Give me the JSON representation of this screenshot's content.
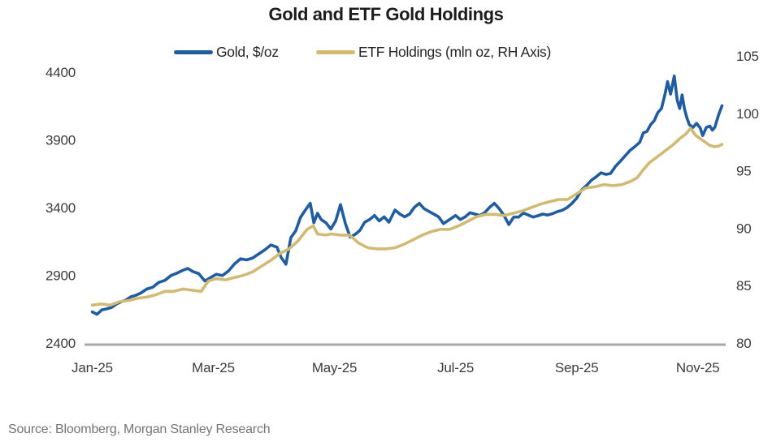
{
  "title": "Gold and ETF Gold Holdings",
  "source": "Source: Bloomberg, Morgan Stanley Research",
  "legend": [
    {
      "label": "Gold, $/oz",
      "color": "#1d5da7"
    },
    {
      "label": "ETF Holdings (mln oz, RH Axis)",
      "color": "#d2bb6e"
    }
  ],
  "colors": {
    "gold_line": "#1d5da7",
    "etf_line": "#d2bb6e",
    "axis_line": "#a8a8a8",
    "tick_text": "#3c3c3c",
    "title_text": "#1c1c1c",
    "source_text": "#757575",
    "background": "#ffffff"
  },
  "chart_data": {
    "type": "line",
    "title": "Gold and ETF Gold Holdings",
    "grid": false,
    "legend_position": "top",
    "axis_line_color": "#a8a8a8",
    "x_axis": {
      "unit": "months since Jan-2025",
      "min": -0.1,
      "max": 10.5,
      "tick_positions": [
        0,
        2,
        4,
        6,
        8,
        10
      ],
      "tick_labels": [
        "Jan-25",
        "Mar-25",
        "May-25",
        "Jul-25",
        "Sep-25",
        "Nov-25"
      ]
    },
    "left_axis": {
      "label": "Gold, $/oz",
      "min": 2400,
      "max": 4400,
      "ticks": [
        2400,
        2900,
        3400,
        3900,
        4400
      ]
    },
    "right_axis": {
      "label": "ETF Holdings (mln oz)",
      "min": 80,
      "max": 105,
      "ticks": [
        80,
        85,
        90,
        95,
        100,
        105
      ]
    },
    "series": [
      {
        "name": "Gold, $/oz",
        "data_name": "gold-line-series",
        "axis": "left",
        "color": "#1d5da7",
        "points": [
          [
            0,
            2630
          ],
          [
            0.08,
            2612
          ],
          [
            0.16,
            2645
          ],
          [
            0.24,
            2652
          ],
          [
            0.32,
            2662
          ],
          [
            0.4,
            2688
          ],
          [
            0.48,
            2705
          ],
          [
            0.56,
            2718
          ],
          [
            0.64,
            2742
          ],
          [
            0.72,
            2752
          ],
          [
            0.8,
            2768
          ],
          [
            0.9,
            2798
          ],
          [
            1.0,
            2812
          ],
          [
            1.1,
            2848
          ],
          [
            1.2,
            2862
          ],
          [
            1.3,
            2898
          ],
          [
            1.4,
            2916
          ],
          [
            1.5,
            2938
          ],
          [
            1.58,
            2950
          ],
          [
            1.66,
            2928
          ],
          [
            1.76,
            2912
          ],
          [
            1.86,
            2858
          ],
          [
            1.95,
            2882
          ],
          [
            2.05,
            2908
          ],
          [
            2.15,
            2898
          ],
          [
            2.25,
            2932
          ],
          [
            2.35,
            2984
          ],
          [
            2.45,
            3022
          ],
          [
            2.55,
            3014
          ],
          [
            2.65,
            3028
          ],
          [
            2.75,
            3058
          ],
          [
            2.85,
            3088
          ],
          [
            2.95,
            3124
          ],
          [
            3.05,
            3108
          ],
          [
            3.12,
            3032
          ],
          [
            3.2,
            2982
          ],
          [
            3.28,
            3178
          ],
          [
            3.36,
            3228
          ],
          [
            3.44,
            3328
          ],
          [
            3.52,
            3382
          ],
          [
            3.6,
            3432
          ],
          [
            3.66,
            3288
          ],
          [
            3.72,
            3358
          ],
          [
            3.78,
            3312
          ],
          [
            3.86,
            3288
          ],
          [
            3.94,
            3242
          ],
          [
            4.02,
            3302
          ],
          [
            4.1,
            3422
          ],
          [
            4.18,
            3282
          ],
          [
            4.26,
            3182
          ],
          [
            4.34,
            3202
          ],
          [
            4.42,
            3232
          ],
          [
            4.5,
            3292
          ],
          [
            4.58,
            3312
          ],
          [
            4.66,
            3342
          ],
          [
            4.74,
            3302
          ],
          [
            4.82,
            3332
          ],
          [
            4.9,
            3292
          ],
          [
            5.0,
            3382
          ],
          [
            5.08,
            3352
          ],
          [
            5.16,
            3332
          ],
          [
            5.24,
            3352
          ],
          [
            5.32,
            3402
          ],
          [
            5.4,
            3432
          ],
          [
            5.48,
            3392
          ],
          [
            5.56,
            3372
          ],
          [
            5.64,
            3352
          ],
          [
            5.72,
            3332
          ],
          [
            5.8,
            3282
          ],
          [
            5.9,
            3312
          ],
          [
            6.0,
            3342
          ],
          [
            6.08,
            3312
          ],
          [
            6.16,
            3332
          ],
          [
            6.24,
            3362
          ],
          [
            6.32,
            3352
          ],
          [
            6.4,
            3342
          ],
          [
            6.48,
            3362
          ],
          [
            6.56,
            3402
          ],
          [
            6.64,
            3432
          ],
          [
            6.72,
            3392
          ],
          [
            6.8,
            3342
          ],
          [
            6.88,
            3275
          ],
          [
            6.96,
            3330
          ],
          [
            7.04,
            3330
          ],
          [
            7.12,
            3360
          ],
          [
            7.2,
            3345
          ],
          [
            7.28,
            3330
          ],
          [
            7.36,
            3340
          ],
          [
            7.44,
            3352
          ],
          [
            7.52,
            3345
          ],
          [
            7.6,
            3355
          ],
          [
            7.68,
            3370
          ],
          [
            7.76,
            3380
          ],
          [
            7.84,
            3400
          ],
          [
            7.92,
            3430
          ],
          [
            8.0,
            3470
          ],
          [
            8.08,
            3530
          ],
          [
            8.16,
            3562
          ],
          [
            8.24,
            3602
          ],
          [
            8.32,
            3627
          ],
          [
            8.4,
            3657
          ],
          [
            8.48,
            3645
          ],
          [
            8.56,
            3652
          ],
          [
            8.64,
            3705
          ],
          [
            8.72,
            3742
          ],
          [
            8.8,
            3782
          ],
          [
            8.88,
            3822
          ],
          [
            8.96,
            3850
          ],
          [
            9.04,
            3882
          ],
          [
            9.1,
            3952
          ],
          [
            9.16,
            3962
          ],
          [
            9.22,
            4012
          ],
          [
            9.28,
            4042
          ],
          [
            9.34,
            4102
          ],
          [
            9.4,
            4132
          ],
          [
            9.46,
            4242
          ],
          [
            9.5,
            4330
          ],
          [
            9.55,
            4238
          ],
          [
            9.61,
            4372
          ],
          [
            9.66,
            4192
          ],
          [
            9.7,
            4132
          ],
          [
            9.74,
            4232
          ],
          [
            9.78,
            4128
          ],
          [
            9.82,
            4062
          ],
          [
            9.86,
            4012
          ],
          [
            9.92,
            3992
          ],
          [
            9.98,
            4022
          ],
          [
            10.04,
            3988
          ],
          [
            10.08,
            3932
          ],
          [
            10.14,
            3992
          ],
          [
            10.2,
            4002
          ],
          [
            10.24,
            3972
          ],
          [
            10.28,
            3992
          ],
          [
            10.34,
            4082
          ],
          [
            10.4,
            4152
          ]
        ]
      },
      {
        "name": "ETF Holdings (mln oz, RH Axis)",
        "data_name": "etf-holdings-line-series",
        "axis": "right",
        "color": "#d2bb6e",
        "points": [
          [
            0,
            83.3
          ],
          [
            0.15,
            83.4
          ],
          [
            0.3,
            83.3
          ],
          [
            0.45,
            83.6
          ],
          [
            0.6,
            83.7
          ],
          [
            0.75,
            83.9
          ],
          [
            0.9,
            84.0
          ],
          [
            1.05,
            84.2
          ],
          [
            1.2,
            84.5
          ],
          [
            1.35,
            84.5
          ],
          [
            1.5,
            84.7
          ],
          [
            1.65,
            84.6
          ],
          [
            1.8,
            84.5
          ],
          [
            1.92,
            85.4
          ],
          [
            2.05,
            85.6
          ],
          [
            2.2,
            85.5
          ],
          [
            2.35,
            85.7
          ],
          [
            2.5,
            85.9
          ],
          [
            2.65,
            86.2
          ],
          [
            2.8,
            86.7
          ],
          [
            2.95,
            87.2
          ],
          [
            3.1,
            87.8
          ],
          [
            3.25,
            88.2
          ],
          [
            3.4,
            88.9
          ],
          [
            3.55,
            89.9
          ],
          [
            3.65,
            90.2
          ],
          [
            3.72,
            89.5
          ],
          [
            3.85,
            89.4
          ],
          [
            3.95,
            89.5
          ],
          [
            4.1,
            89.4
          ],
          [
            4.25,
            89.4
          ],
          [
            4.4,
            88.7
          ],
          [
            4.55,
            88.3
          ],
          [
            4.7,
            88.2
          ],
          [
            4.85,
            88.2
          ],
          [
            5.0,
            88.3
          ],
          [
            5.15,
            88.6
          ],
          [
            5.3,
            89.0
          ],
          [
            5.45,
            89.4
          ],
          [
            5.6,
            89.7
          ],
          [
            5.75,
            89.9
          ],
          [
            5.9,
            89.9
          ],
          [
            6.05,
            90.2
          ],
          [
            6.2,
            90.6
          ],
          [
            6.35,
            91.0
          ],
          [
            6.5,
            91.2
          ],
          [
            6.65,
            91.2
          ],
          [
            6.8,
            91.1
          ],
          [
            6.95,
            91.3
          ],
          [
            7.1,
            91.5
          ],
          [
            7.25,
            91.8
          ],
          [
            7.4,
            92.1
          ],
          [
            7.55,
            92.3
          ],
          [
            7.7,
            92.5
          ],
          [
            7.85,
            92.5
          ],
          [
            8.0,
            93.0
          ],
          [
            8.15,
            93.5
          ],
          [
            8.3,
            93.6
          ],
          [
            8.45,
            93.8
          ],
          [
            8.6,
            93.7
          ],
          [
            8.75,
            93.8
          ],
          [
            8.9,
            94.1
          ],
          [
            9.0,
            94.4
          ],
          [
            9.1,
            95.1
          ],
          [
            9.2,
            95.7
          ],
          [
            9.3,
            96.1
          ],
          [
            9.4,
            96.5
          ],
          [
            9.5,
            96.9
          ],
          [
            9.6,
            97.3
          ],
          [
            9.7,
            97.8
          ],
          [
            9.8,
            98.2
          ],
          [
            9.88,
            98.7
          ],
          [
            9.96,
            98.1
          ],
          [
            10.04,
            97.8
          ],
          [
            10.12,
            97.5
          ],
          [
            10.2,
            97.2
          ],
          [
            10.28,
            97.1
          ],
          [
            10.34,
            97.15
          ],
          [
            10.4,
            97.3
          ]
        ]
      }
    ]
  }
}
